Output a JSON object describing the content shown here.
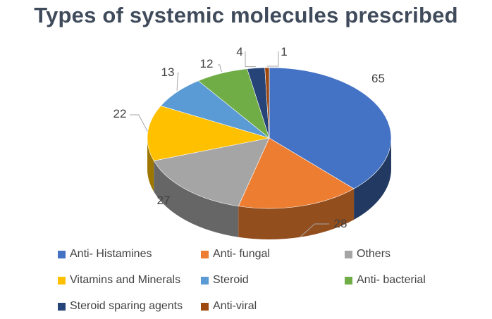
{
  "chart_data": {
    "type": "pie",
    "title": "Types of systemic molecules prescribed",
    "categories": [
      "Anti- Histamines",
      "Anti- fungal",
      "Others",
      "Vitamins and Minerals",
      "Steroid",
      "Anti- bacterial",
      "Steroid sparing agents",
      "Anti-viral"
    ],
    "values": [
      65,
      28,
      27,
      22,
      13,
      12,
      4,
      1
    ],
    "value_labels": [
      "65",
      "28",
      "27",
      "22",
      "13",
      "12",
      "4",
      "1"
    ],
    "colors": [
      "#4472c4",
      "#ed7d31",
      "#a5a5a5",
      "#ffc000",
      "#5b9bd5",
      "#70ad47",
      "#264478",
      "#9e480e"
    ],
    "style": "3d",
    "legend_position": "bottom"
  }
}
